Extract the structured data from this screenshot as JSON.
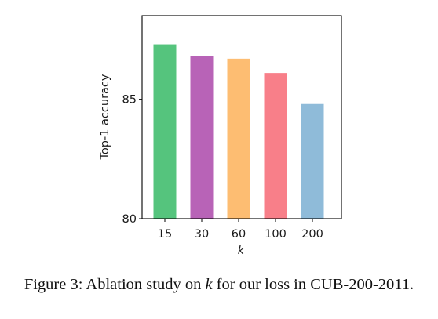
{
  "chart_data": {
    "type": "bar",
    "categories": [
      "15",
      "30",
      "60",
      "100",
      "200"
    ],
    "values": [
      87.3,
      86.8,
      86.7,
      86.1,
      84.8
    ],
    "colors": [
      "#55c47d",
      "#b863b7",
      "#fdbd72",
      "#f87f89",
      "#8fbbd9"
    ],
    "xlabel": "k",
    "ylabel": "Top-1 accuracy",
    "ylim": [
      80,
      88.5
    ],
    "yticks": [
      80,
      85
    ],
    "grid": false
  },
  "caption": {
    "prefix": "Figure 3: Ablation study on ",
    "variable": "k",
    "suffix": " for our loss in CUB-200-2011."
  }
}
